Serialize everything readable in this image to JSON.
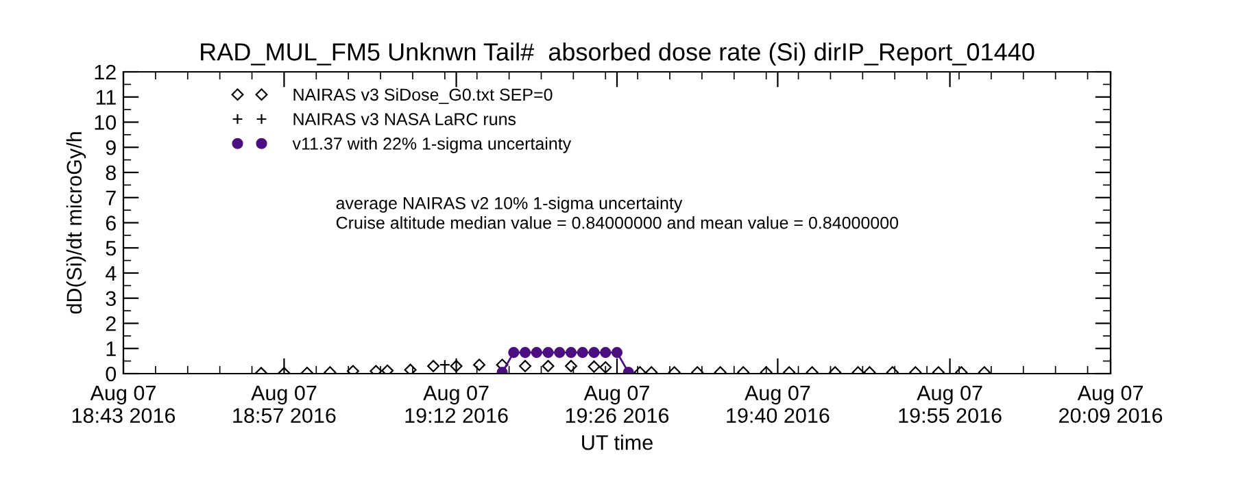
{
  "chart_data": {
    "type": "scatter",
    "title": "RAD_MUL_FM5 Unknwn Tail#  absorbed dose rate (Si) dirIP_Report_01440",
    "xlabel": "UT time",
    "ylabel": "dD(Si)/dt microGy/h",
    "xlim": [
      "2016-08-07T18:43",
      "2016-08-07T20:09"
    ],
    "xticks": [
      {
        "value": "2016-08-07T18:43",
        "label": "Aug 07\n18:43 2016"
      },
      {
        "value": "2016-08-07T18:57",
        "label": "Aug 07\n18:57 2016"
      },
      {
        "value": "2016-08-07T19:12",
        "label": "Aug 07\n19:12 2016"
      },
      {
        "value": "2016-08-07T19:26",
        "label": "Aug 07\n19:26 2016"
      },
      {
        "value": "2016-08-07T19:40",
        "label": "Aug 07\n19:40 2016"
      },
      {
        "value": "2016-08-07T19:55",
        "label": "Aug 07\n19:55 2016"
      },
      {
        "value": "2016-08-07T20:09",
        "label": "Aug 07\n20:09 2016"
      }
    ],
    "ylim": [
      0,
      12
    ],
    "yticks": [
      0,
      1,
      2,
      3,
      4,
      5,
      6,
      7,
      8,
      9,
      10,
      11,
      12
    ],
    "grid": false,
    "legend": "top left",
    "series": [
      {
        "name": "NAIRAS v3 SiDose_G0.txt SEP=0",
        "color": "#000000",
        "marker": "diamond",
        "x": [
          "2016-08-07T18:55",
          "2016-08-07T18:57",
          "2016-08-07T18:59",
          "2016-08-07T19:01",
          "2016-08-07T19:03",
          "2016-08-07T19:05",
          "2016-08-07T19:06",
          "2016-08-07T19:08",
          "2016-08-07T19:10",
          "2016-08-07T19:12",
          "2016-08-07T19:14",
          "2016-08-07T19:16",
          "2016-08-07T19:18",
          "2016-08-07T19:20",
          "2016-08-07T19:22",
          "2016-08-07T19:24",
          "2016-08-07T19:25",
          "2016-08-07T19:28",
          "2016-08-07T19:29",
          "2016-08-07T19:31",
          "2016-08-07T19:33",
          "2016-08-07T19:35",
          "2016-08-07T19:37",
          "2016-08-07T19:39",
          "2016-08-07T19:41",
          "2016-08-07T19:43",
          "2016-08-07T19:45",
          "2016-08-07T19:47",
          "2016-08-07T19:48",
          "2016-08-07T19:50",
          "2016-08-07T19:52",
          "2016-08-07T19:54",
          "2016-08-07T19:56",
          "2016-08-07T19:58"
        ],
        "values": [
          0.02,
          0.02,
          0.03,
          0.05,
          0.1,
          0.1,
          0.12,
          0.15,
          0.3,
          0.3,
          0.35,
          0.35,
          0.3,
          0.3,
          0.3,
          0.28,
          0.25,
          0.05,
          0.05,
          0.05,
          0.05,
          0.05,
          0.05,
          0.05,
          0.05,
          0.05,
          0.05,
          0.05,
          0.05,
          0.05,
          0.05,
          0.05,
          0.05,
          0.05
        ]
      },
      {
        "name": "NAIRAS v3 NASA LaRC runs",
        "color": "#000000",
        "marker": "cross",
        "x": [
          "2016-08-07T19:11"
        ],
        "values": [
          0.35
        ]
      },
      {
        "name": "v11.37 with 22% 1-sigma uncertainty",
        "color": "#4b0f7f",
        "marker": "circle",
        "type": "line",
        "x": [
          "2016-08-07T19:16",
          "2016-08-07T19:17",
          "2016-08-07T19:18",
          "2016-08-07T19:19",
          "2016-08-07T19:20",
          "2016-08-07T19:21",
          "2016-08-07T19:22",
          "2016-08-07T19:23",
          "2016-08-07T19:24",
          "2016-08-07T19:25",
          "2016-08-07T19:26",
          "2016-08-07T19:27"
        ],
        "values": [
          0.05,
          0.84,
          0.84,
          0.84,
          0.84,
          0.84,
          0.84,
          0.84,
          0.84,
          0.84,
          0.84,
          0.05
        ]
      }
    ],
    "annotations": [
      "average NAIRAS v2 10% 1-sigma uncertainty",
      "Cruise altitude median value = 0.84000000 and mean value = 0.84000000"
    ]
  }
}
